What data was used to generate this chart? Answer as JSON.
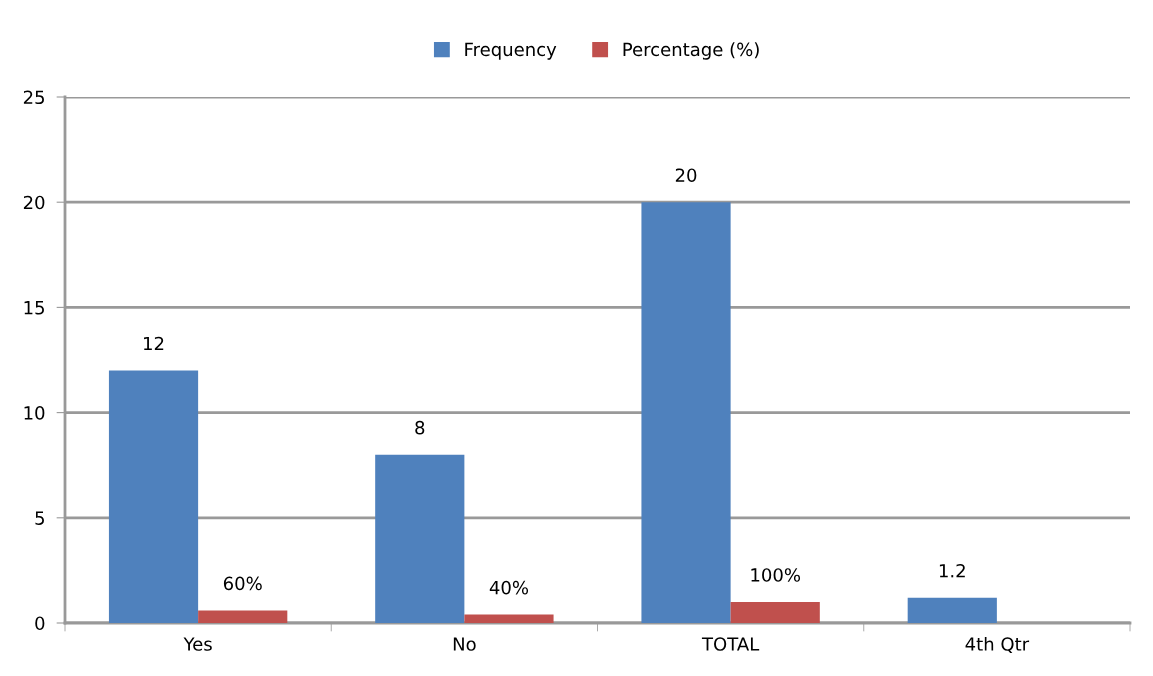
{
  "chart_data": {
    "type": "bar",
    "categories": [
      "Yes",
      "No",
      "TOTAL",
      "4th Qtr"
    ],
    "series": [
      {
        "name": "Frequency",
        "color": "#4f81bd",
        "values": [
          12,
          8,
          20,
          1.2
        ],
        "value_labels": [
          "12",
          "8",
          "20",
          "1.2"
        ]
      },
      {
        "name": "Percentage (%)",
        "color": "#c0504d",
        "values": [
          0.6,
          0.4,
          1.0,
          null
        ],
        "value_labels": [
          "60%",
          "40%",
          "100%",
          null
        ]
      }
    ],
    "ylim": [
      0,
      25
    ],
    "yticks": [
      0,
      5,
      10,
      15,
      20,
      25
    ],
    "grid": "y",
    "legend": "top"
  }
}
